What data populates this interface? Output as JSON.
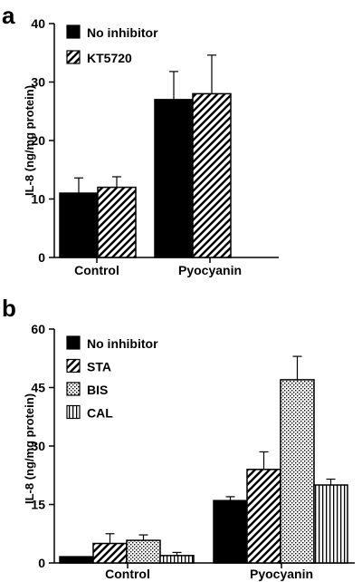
{
  "chart_data": [
    {
      "panel_label": "a",
      "type": "bar",
      "categories": [
        "Control",
        "Pyocyanin"
      ],
      "ylabel": "IL-8 (ng/mg protein)",
      "ylim": [
        0,
        40
      ],
      "yticks": [
        0,
        10,
        20,
        30,
        40
      ],
      "legend_position": "top-left",
      "series": [
        {
          "name": "No inhibitor",
          "pattern": "solid",
          "values": [
            11,
            27
          ],
          "errors": [
            2.6,
            4.8
          ]
        },
        {
          "name": "KT5720",
          "pattern": "diagonal",
          "values": [
            12,
            28
          ],
          "errors": [
            1.8,
            6.6
          ]
        }
      ]
    },
    {
      "panel_label": "b",
      "type": "bar",
      "categories": [
        "Control",
        "Pyocyanin"
      ],
      "ylabel": "IL-8 (ng/mg protein)",
      "ylim": [
        0,
        60
      ],
      "yticks": [
        0,
        15,
        30,
        45,
        60
      ],
      "legend_position": "top-left",
      "series": [
        {
          "name": "No inhibitor",
          "pattern": "solid",
          "values": [
            1.6,
            16
          ],
          "errors": [
            0,
            1.0
          ]
        },
        {
          "name": "STA",
          "pattern": "diagonal",
          "values": [
            5,
            24
          ],
          "errors": [
            2.5,
            4.5
          ]
        },
        {
          "name": "BIS",
          "pattern": "dots",
          "values": [
            5.8,
            47
          ],
          "errors": [
            1.4,
            6.0
          ]
        },
        {
          "name": "CAL",
          "pattern": "vertical",
          "values": [
            1.9,
            20
          ],
          "errors": [
            0.8,
            1.5
          ]
        }
      ]
    }
  ]
}
